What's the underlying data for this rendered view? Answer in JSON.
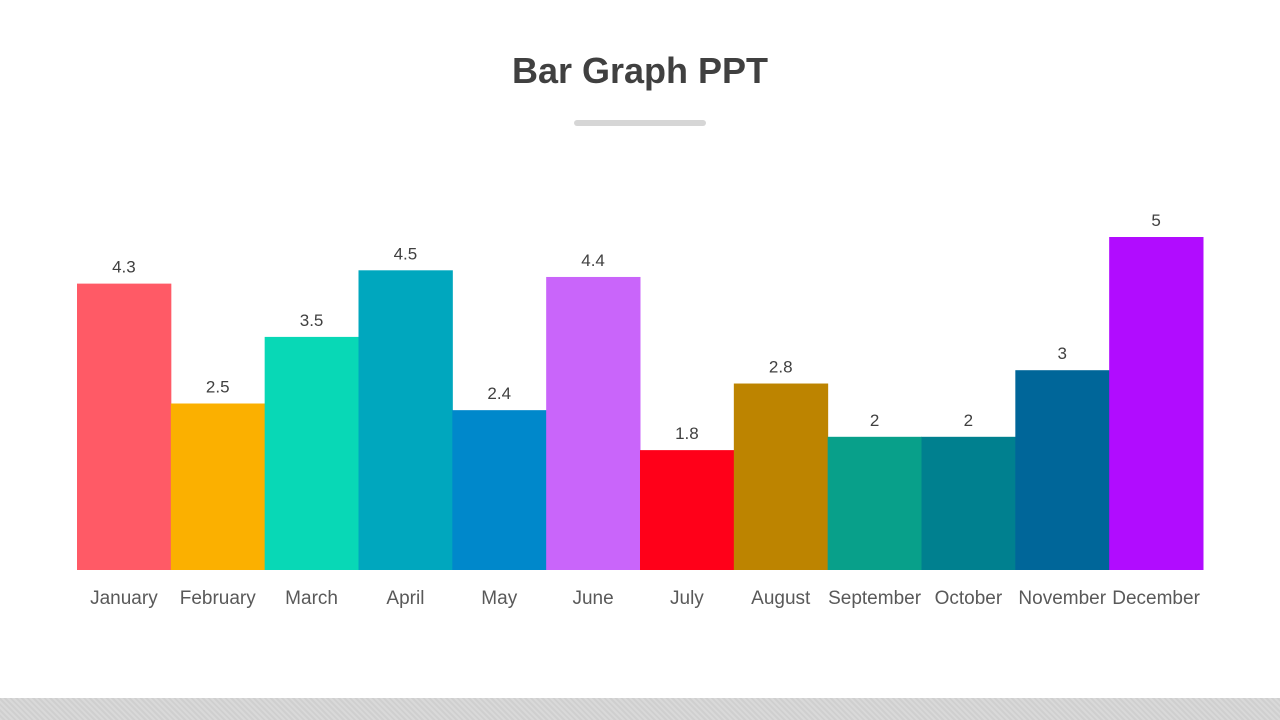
{
  "slide": {
    "title": "Bar Graph PPT"
  },
  "chart_data": {
    "type": "bar",
    "title": "Bar Graph PPT",
    "categories": [
      "January",
      "February",
      "March",
      "April",
      "May",
      "June",
      "July",
      "August",
      "September",
      "October",
      "November",
      "December"
    ],
    "values": [
      4.3,
      2.5,
      3.5,
      4.5,
      2.4,
      4.4,
      1.8,
      2.8,
      2,
      2,
      3,
      5
    ],
    "value_labels": [
      "4.3",
      "2.5",
      "3.5",
      "4.5",
      "2.4",
      "4.4",
      "1.8",
      "2.8",
      "2",
      "2",
      "3",
      "5"
    ],
    "colors": [
      "#FF5A66",
      "#FBB000",
      "#08D8B6",
      "#00A7BE",
      "#0088CB",
      "#C965FA",
      "#FF0019",
      "#BD8400",
      "#08A08A",
      "#00808F",
      "#006699",
      "#B10CFF"
    ],
    "xlabel": "",
    "ylabel": "",
    "ylim": [
      0,
      5
    ],
    "grid": false,
    "legend": "none"
  }
}
